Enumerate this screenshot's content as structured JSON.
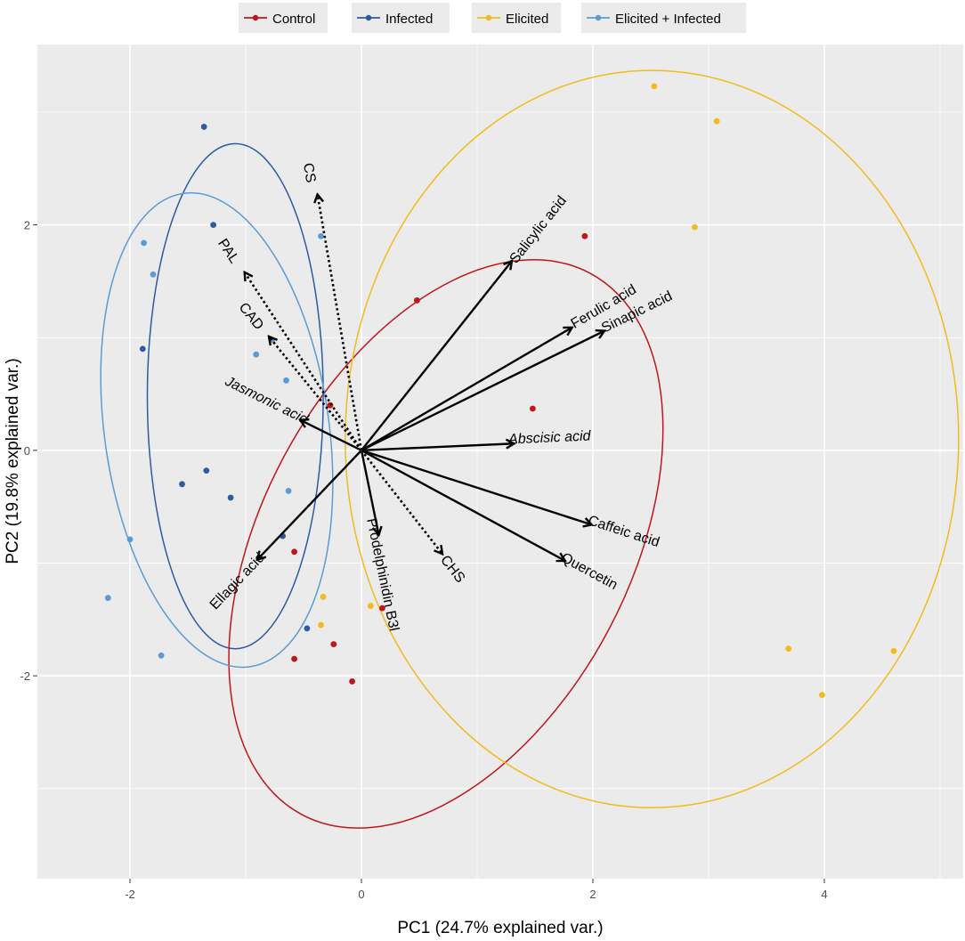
{
  "chart_data": {
    "type": "scatter",
    "title": "",
    "xlabel": "PC1 (24.7% explained var.)",
    "ylabel": "PC2 (19.8% explained var.)",
    "xlim": [
      -2.8,
      5.2
    ],
    "ylim": [
      -3.8,
      3.6
    ],
    "xticks": [
      -2,
      0,
      2,
      4
    ],
    "yticks": [
      -2,
      0,
      2
    ],
    "xtick_labels": [
      "-2",
      "0",
      "2",
      "4"
    ],
    "ytick_labels": [
      "-2",
      "0",
      "2"
    ],
    "grid": true,
    "legend": {
      "position": "top"
    },
    "series": [
      {
        "name": "Control",
        "color": "#c0161b",
        "points": [
          [
            1.93,
            1.9
          ],
          [
            0.48,
            1.33
          ],
          [
            1.48,
            0.37
          ],
          [
            -0.27,
            0.4
          ],
          [
            -0.58,
            -0.9
          ],
          [
            0.18,
            -1.4
          ],
          [
            -0.24,
            -1.72
          ],
          [
            -0.58,
            -1.85
          ],
          [
            -0.08,
            -2.05
          ]
        ],
        "ellipse": {
          "cx": 0.73,
          "cy": -0.83,
          "rx": 1.59,
          "ry": 2.72,
          "angle_deg": 28
        }
      },
      {
        "name": "Infected",
        "color": "#2e5aa1",
        "points": [
          [
            -1.36,
            2.87
          ],
          [
            -1.28,
            2.0
          ],
          [
            -1.89,
            0.9
          ],
          [
            -1.34,
            -0.18
          ],
          [
            -1.55,
            -0.3
          ],
          [
            -1.13,
            -0.42
          ],
          [
            -0.68,
            -0.76
          ],
          [
            -0.47,
            -1.58
          ]
        ],
        "ellipse": {
          "cx": -1.09,
          "cy": 0.48,
          "rx": 0.76,
          "ry": 2.24,
          "angle_deg": 0
        }
      },
      {
        "name": "Elicited",
        "color": "#f2bb1b",
        "points": [
          [
            2.53,
            3.23
          ],
          [
            3.07,
            2.92
          ],
          [
            2.88,
            1.98
          ],
          [
            3.69,
            -1.76
          ],
          [
            4.6,
            -1.78
          ],
          [
            3.98,
            -2.17
          ],
          [
            -0.33,
            -1.3
          ],
          [
            0.08,
            -1.38
          ],
          [
            -0.35,
            -1.55
          ]
        ],
        "ellipse": {
          "cx": 2.51,
          "cy": 0.1,
          "rx": 2.65,
          "ry": 3.27,
          "angle_deg": 0
        }
      },
      {
        "name": "Elicited + Infected",
        "color": "#5b9bd5",
        "points": [
          [
            -1.88,
            1.84
          ],
          [
            -1.8,
            1.56
          ],
          [
            -0.35,
            1.9
          ],
          [
            -0.77,
            0.98
          ],
          [
            -0.91,
            0.85
          ],
          [
            -0.65,
            0.62
          ],
          [
            -0.63,
            -0.36
          ],
          [
            -2.0,
            -0.79
          ],
          [
            -2.19,
            -1.31
          ],
          [
            -1.73,
            -1.82
          ]
        ],
        "ellipse": {
          "cx": -1.25,
          "cy": 0.18,
          "rx": 0.97,
          "ry": 2.12,
          "angle_deg": -8
        }
      }
    ],
    "loadings": [
      {
        "label": "Salicylic acid",
        "x": 1.3,
        "y": 1.68,
        "style": "solid",
        "italic": false
      },
      {
        "label": "Ferulic acid",
        "x": 1.82,
        "y": 1.09,
        "style": "solid",
        "italic": false
      },
      {
        "label": "Sinapic acid",
        "x": 2.1,
        "y": 1.06,
        "style": "solid",
        "italic": false
      },
      {
        "label": "Abscisic acid",
        "x": 1.32,
        "y": 0.06,
        "style": "solid",
        "italic": true
      },
      {
        "label": "Caffeic  acid",
        "x": 1.99,
        "y": -0.66,
        "style": "solid",
        "italic": false
      },
      {
        "label": "Quercetin",
        "x": 1.76,
        "y": -0.98,
        "style": "solid",
        "italic": false
      },
      {
        "label": "CHS",
        "x": 0.7,
        "y": -0.92,
        "style": "dotted",
        "italic": false
      },
      {
        "label": "Prodelphinidin B3l",
        "x": 0.15,
        "y": -0.75,
        "style": "solid",
        "italic": false
      },
      {
        "label": "Ellagic acid",
        "x": -0.9,
        "y": -0.97,
        "style": "solid",
        "italic": false
      },
      {
        "label": "Jasmonic acid",
        "x": -0.53,
        "y": 0.27,
        "style": "solid",
        "italic": true
      },
      {
        "label": "CAD",
        "x": -0.8,
        "y": 1.01,
        "style": "dotted",
        "italic": false
      },
      {
        "label": "PAL",
        "x": -1.01,
        "y": 1.58,
        "style": "dotted",
        "italic": false
      },
      {
        "label": "CS",
        "x": -0.38,
        "y": 2.27,
        "style": "dotted",
        "italic": false
      }
    ]
  }
}
